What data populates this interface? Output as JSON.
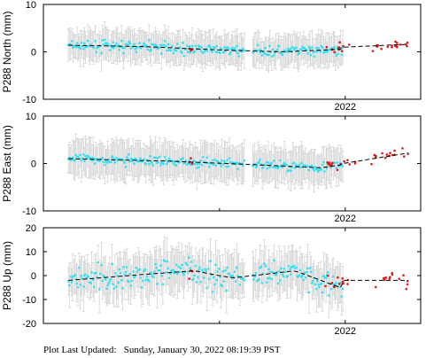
{
  "footer": {
    "label": "Plot Last Updated:",
    "timestamp": "Sunday, January 30, 2022 08:19:39 PST"
  },
  "colors": {
    "primary_points": "#33e0f0",
    "rapid_points": "#e01818",
    "error_bars": "#d4d4d4",
    "trend": "#000000",
    "frame": "#000000"
  },
  "chart_data": [
    {
      "type": "scatter",
      "ylabel": "P288 North (mm)",
      "ylim": [
        -10,
        10
      ],
      "yticks": [
        -10,
        0,
        10
      ],
      "xlim": [
        2020.8,
        2022.3
      ],
      "xtick": 2022,
      "xtick_label": "2022",
      "xtick_label_visible": true,
      "series": [
        {
          "role": "primary",
          "t_start": 2020.9,
          "t_end": 2021.99,
          "trend": [
            [
              2020.9,
              1.4
            ],
            [
              2021.2,
              1.1
            ],
            [
              2021.5,
              0.4
            ],
            [
              2021.75,
              0.0
            ],
            [
              2022.0,
              0.6
            ]
          ],
          "noise": 1.0,
          "error_bar": 3.0
        },
        {
          "role": "rapid",
          "t_start": 2021.92,
          "t_end": 2022.25,
          "trend": [
            [
              2021.92,
              0.8
            ],
            [
              2022.25,
              1.6
            ]
          ],
          "noise": 0.9
        }
      ]
    },
    {
      "type": "scatter",
      "ylabel": "P288 East (mm)",
      "ylim": [
        -10,
        10
      ],
      "yticks": [
        -10,
        0,
        10
      ],
      "xlim": [
        2020.8,
        2022.3
      ],
      "xtick": 2022,
      "xtick_label": "2022",
      "xtick_label_visible": true,
      "series": [
        {
          "role": "primary",
          "t_start": 2020.9,
          "t_end": 2021.99,
          "trend": [
            [
              2020.9,
              1.0
            ],
            [
              2021.3,
              0.5
            ],
            [
              2021.7,
              -0.4
            ],
            [
              2021.9,
              -0.9
            ],
            [
              2022.0,
              -0.2
            ]
          ],
          "noise": 0.9,
          "error_bar": 3.5
        },
        {
          "role": "rapid",
          "t_start": 2021.92,
          "t_end": 2022.25,
          "trend": [
            [
              2021.92,
              -0.6
            ],
            [
              2022.25,
              2.2
            ]
          ],
          "noise": 1.2
        }
      ]
    },
    {
      "type": "scatter",
      "ylabel": "P288 Up (mm)",
      "ylim": [
        -20,
        20
      ],
      "yticks": [
        -20,
        -10,
        0,
        10,
        20
      ],
      "xlim": [
        2020.8,
        2022.3
      ],
      "xtick": 2022,
      "xtick_label": "2022",
      "xtick_label_visible": true,
      "series": [
        {
          "role": "primary",
          "t_start": 2020.9,
          "t_end": 2021.99,
          "trend": [
            [
              2020.9,
              -2.0
            ],
            [
              2021.2,
              0.5
            ],
            [
              2021.4,
              2.0
            ],
            [
              2021.55,
              -1.0
            ],
            [
              2021.8,
              2.0
            ],
            [
              2021.98,
              -5.0
            ]
          ],
          "noise": 4.5,
          "error_bar": 8.0
        },
        {
          "role": "rapid",
          "t_start": 2021.92,
          "t_end": 2022.25,
          "trend": [
            [
              2021.92,
              -2.0
            ],
            [
              2022.25,
              -2.0
            ]
          ],
          "noise": 4.0
        }
      ]
    }
  ]
}
